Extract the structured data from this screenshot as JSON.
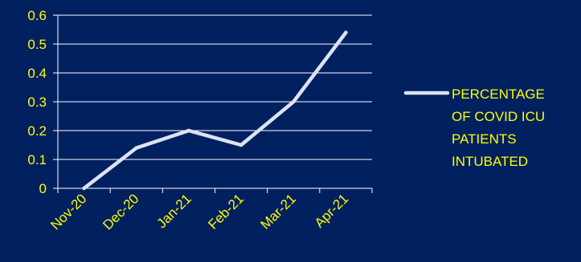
{
  "colors": {
    "background": "#002060",
    "line": "#DCE3F2",
    "text": "#FFFF00",
    "gridline": "#FFFFFF",
    "axis": "#FFFFFF"
  },
  "chart_data": {
    "type": "line",
    "title": "",
    "xlabel": "",
    "ylabel": "",
    "categories": [
      "Nov-20",
      "Dec-20",
      "Jan-21",
      "Feb-21",
      "Mar-21",
      "Apr-21"
    ],
    "series": [
      {
        "name": "PERCENTAGE OF COVID ICU PATIENTS INTUBATED",
        "values": [
          0,
          0.14,
          0.2,
          0.15,
          0.3,
          0.54
        ]
      }
    ],
    "ylim": [
      0,
      0.6
    ],
    "yticks": [
      "0",
      "0.1",
      "0.2",
      "0.3",
      "0.4",
      "0.5",
      "0.6"
    ],
    "grid": true,
    "legend_position": "right",
    "legend_lines": [
      "PERCENTAGE",
      "OF COVID ICU",
      "PATIENTS",
      "INTUBATED"
    ]
  }
}
